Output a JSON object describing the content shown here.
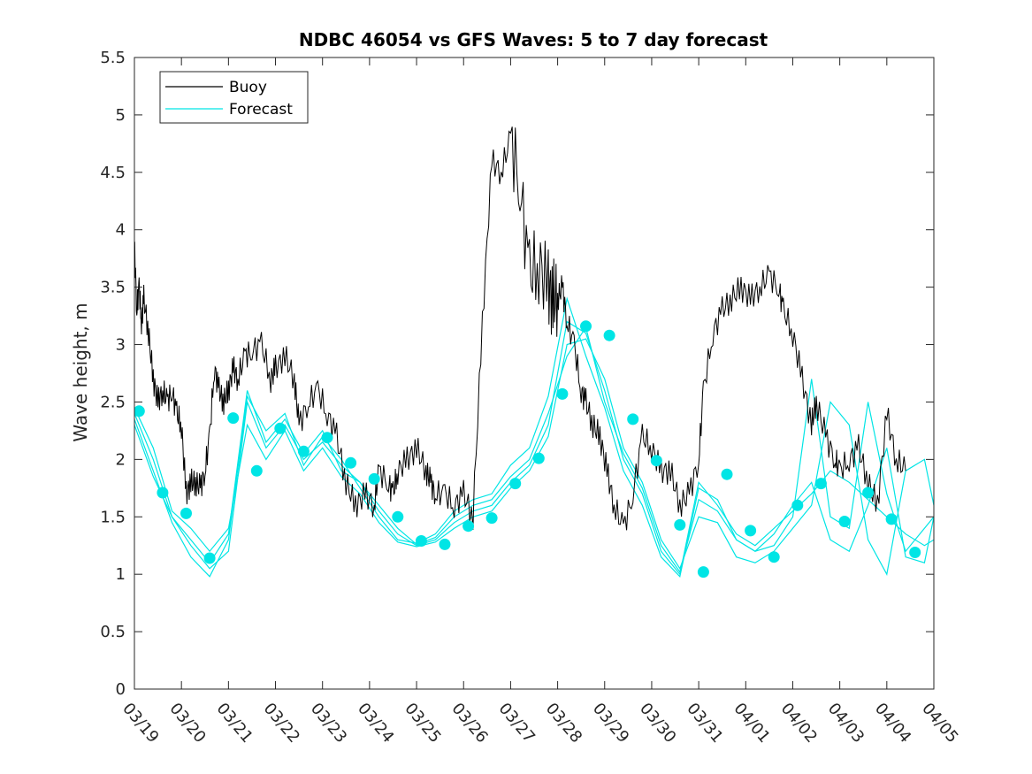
{
  "chart_data": {
    "type": "line",
    "title": "NDBC 46054 vs GFS Waves: 5 to 7 day forecast",
    "xlabel": "",
    "ylabel": "Wave height, m",
    "xlim": [
      0,
      17
    ],
    "ylim": [
      0,
      5.5
    ],
    "yticks": [
      0,
      0.5,
      1,
      1.5,
      2,
      2.5,
      3,
      3.5,
      4,
      4.5,
      5,
      5.5
    ],
    "ytick_labels": [
      "0",
      "0.5",
      "1",
      "1.5",
      "2",
      "2.5",
      "3",
      "3.5",
      "4",
      "4.5",
      "5",
      "5.5"
    ],
    "xtick_labels": [
      "03/19",
      "03/20",
      "03/21",
      "03/22",
      "03/23",
      "03/24",
      "03/25",
      "03/26",
      "03/27",
      "03/28",
      "03/29",
      "03/30",
      "03/31",
      "04/01",
      "04/02",
      "04/03",
      "04/04",
      "04/05"
    ],
    "grid": false,
    "legend_position": "top-left",
    "colors": {
      "buoy": "#000000",
      "forecast": "#00e5e5",
      "axis": "#262626"
    },
    "buoy": {
      "name": "Buoy",
      "x": [
        0.0,
        0.05,
        0.1,
        0.15,
        0.2,
        0.3,
        0.4,
        0.5,
        0.6,
        0.7,
        0.8,
        0.9,
        1.0,
        1.1,
        1.2,
        1.3,
        1.4,
        1.5,
        1.6,
        1.7,
        1.8,
        1.9,
        2.0,
        2.1,
        2.2,
        2.35,
        2.5,
        2.7,
        2.9,
        3.0,
        3.2,
        3.4,
        3.5,
        3.7,
        3.9,
        4.1,
        4.3,
        4.5,
        4.7,
        4.9,
        5.1,
        5.2,
        5.4,
        5.5,
        5.6,
        5.8,
        6.0,
        6.2,
        6.3,
        6.4,
        6.6,
        6.8,
        7.0,
        7.2,
        7.4,
        7.6,
        7.8,
        8.0,
        8.2,
        8.4,
        8.6,
        8.8,
        8.9,
        9.0,
        9.1,
        9.2,
        9.35,
        9.5,
        9.6,
        9.75,
        9.9,
        10.05,
        10.2,
        10.4,
        10.6,
        10.8,
        11.0,
        11.2,
        11.4,
        11.6,
        11.8,
        12.0,
        12.1,
        12.3,
        12.5,
        12.7,
        12.9,
        13.1,
        13.3,
        13.5,
        13.7,
        13.8,
        14.0,
        14.2,
        14.4,
        14.5,
        14.7,
        14.9,
        15.0,
        15.2,
        15.4,
        15.6,
        15.8,
        16.0,
        16.2,
        16.4
      ],
      "values": [
        3.9,
        3.3,
        3.5,
        3.2,
        3.4,
        3.1,
        2.7,
        2.5,
        2.6,
        2.5,
        2.6,
        2.4,
        2.3,
        1.7,
        1.8,
        1.8,
        1.75,
        1.9,
        2.2,
        2.8,
        2.6,
        2.5,
        2.6,
        2.8,
        2.7,
        2.9,
        2.95,
        3.0,
        2.7,
        2.8,
        2.9,
        2.7,
        2.3,
        2.5,
        2.6,
        2.4,
        2.2,
        1.8,
        1.6,
        1.7,
        1.6,
        1.9,
        1.8,
        1.7,
        1.9,
        2.0,
        2.1,
        1.9,
        1.8,
        1.7,
        1.7,
        1.6,
        1.7,
        1.5,
        3.2,
        4.6,
        4.5,
        4.8,
        4.4,
        3.6,
        3.7,
        3.5,
        3.4,
        3.4,
        3.5,
        3.2,
        3.0,
        2.6,
        2.5,
        2.3,
        2.2,
        1.9,
        1.6,
        1.4,
        1.7,
        2.2,
        2.1,
        1.9,
        1.9,
        1.6,
        1.7,
        2.0,
        2.6,
        3.1,
        3.3,
        3.4,
        3.5,
        3.4,
        3.5,
        3.6,
        3.5,
        3.3,
        3.1,
        2.7,
        2.3,
        2.5,
        2.2,
        2.0,
        1.9,
        2.0,
        2.1,
        1.8,
        1.6,
        2.4,
        2.0,
        1.9
      ],
      "forecast_x": [
        0.05,
        0.6,
        1.1,
        1.6,
        2.1,
        2.6,
        3.1,
        3.6,
        4.1,
        4.6,
        5.1,
        5.6,
        6.1,
        6.6,
        7.1,
        7.6,
        8.1,
        8.6,
        9.1,
        9.6,
        10.1,
        10.6,
        11.1,
        11.6,
        12.1,
        12.6,
        13.1,
        13.6,
        14.1,
        14.6,
        15.1,
        15.6,
        16.1,
        16.6,
        17.0
      ]
    },
    "series": [
      {
        "name": "Forecast",
        "x": [
          0.0,
          0.4,
          0.8,
          1.2,
          1.6,
          2.0,
          2.4,
          2.8,
          3.2,
          3.6,
          4.0,
          4.4,
          4.8,
          5.2,
          5.6,
          6.0,
          6.4,
          6.8,
          7.2,
          7.6,
          8.0,
          8.4,
          8.8,
          9.2,
          9.6,
          10.0,
          10.4,
          10.8,
          11.2,
          11.6,
          12.0,
          12.4,
          12.8,
          13.2,
          13.6,
          14.0,
          14.4,
          14.8,
          15.2,
          15.6,
          16.0,
          16.4,
          16.8,
          17.0
        ],
        "values": [
          2.4,
          2.0,
          1.5,
          1.25,
          1.05,
          1.2,
          2.5,
          2.1,
          2.3,
          2.0,
          2.15,
          1.95,
          1.8,
          1.55,
          1.35,
          1.25,
          1.3,
          1.45,
          1.55,
          1.6,
          1.8,
          1.95,
          2.3,
          3.2,
          3.1,
          2.6,
          2.0,
          1.7,
          1.2,
          1.0,
          1.8,
          1.6,
          1.35,
          1.25,
          1.4,
          1.55,
          1.7,
          1.9,
          1.8,
          1.65,
          1.5,
          1.35,
          1.25,
          1.3
        ]
      },
      {
        "name": "",
        "x": [
          0.0,
          0.4,
          0.8,
          1.2,
          1.6,
          2.0,
          2.4,
          2.8,
          3.2,
          3.6,
          4.0,
          4.4,
          4.8,
          5.2,
          5.6,
          6.0,
          6.4,
          6.8,
          7.2,
          7.6,
          8.0,
          8.4,
          8.8,
          9.2,
          9.6,
          10.0,
          10.4,
          10.8,
          11.2,
          11.6,
          12.0,
          12.4,
          12.8,
          13.2,
          13.6,
          14.0,
          14.4,
          14.8,
          15.2,
          15.6,
          16.0,
          16.4,
          16.8,
          17.0
        ],
        "values": [
          2.35,
          1.9,
          1.45,
          1.15,
          0.98,
          1.3,
          2.55,
          2.25,
          2.4,
          1.95,
          2.2,
          2.0,
          1.75,
          1.5,
          1.3,
          1.27,
          1.35,
          1.55,
          1.65,
          1.7,
          1.95,
          2.1,
          2.55,
          3.4,
          2.9,
          2.45,
          1.9,
          1.6,
          1.15,
          0.98,
          1.75,
          1.65,
          1.3,
          1.2,
          1.35,
          1.6,
          1.8,
          1.3,
          1.2,
          1.6,
          2.1,
          1.15,
          1.1,
          1.5
        ]
      },
      {
        "name": "",
        "x": [
          0.0,
          0.4,
          0.8,
          1.2,
          1.6,
          2.0,
          2.4,
          2.8,
          3.2,
          3.6,
          4.0,
          4.4,
          4.8,
          5.2,
          5.6,
          6.0,
          6.4,
          6.8,
          7.2,
          7.6,
          8.0,
          8.4,
          8.8,
          9.2,
          9.6,
          10.0,
          10.4,
          10.8,
          11.2,
          11.6,
          12.0,
          12.4,
          12.8,
          13.2,
          13.6,
          14.0,
          14.4,
          14.8,
          15.2,
          15.6,
          16.0,
          16.4,
          16.8,
          17.0
        ],
        "values": [
          2.45,
          2.1,
          1.55,
          1.4,
          1.2,
          1.4,
          2.3,
          2.0,
          2.25,
          1.9,
          2.1,
          1.85,
          1.7,
          1.45,
          1.28,
          1.24,
          1.28,
          1.4,
          1.5,
          1.55,
          1.75,
          1.9,
          2.2,
          3.0,
          3.05,
          2.7,
          2.1,
          1.8,
          1.3,
          1.05,
          1.5,
          1.45,
          1.15,
          1.1,
          1.2,
          1.4,
          1.6,
          2.5,
          2.3,
          1.3,
          1.0,
          1.9,
          2.0,
          1.6
        ]
      },
      {
        "name": "",
        "x": [
          0.0,
          0.4,
          0.8,
          1.2,
          1.6,
          2.0,
          2.4,
          2.8,
          3.2,
          3.6,
          4.0,
          4.4,
          4.8,
          5.2,
          5.6,
          6.0,
          6.4,
          6.8,
          7.2,
          7.6,
          8.0,
          8.4,
          8.8,
          9.2,
          9.6,
          10.0,
          10.4,
          10.8,
          11.2,
          11.6,
          12.0,
          12.4,
          12.8,
          13.2,
          13.6,
          14.0,
          14.4,
          14.8,
          15.2,
          15.6,
          16.0,
          16.4,
          16.8,
          17.0
        ],
        "values": [
          2.3,
          1.85,
          1.5,
          1.3,
          1.1,
          1.35,
          2.6,
          2.15,
          2.35,
          2.05,
          2.25,
          1.9,
          1.8,
          1.6,
          1.4,
          1.26,
          1.32,
          1.5,
          1.6,
          1.65,
          1.85,
          2.0,
          2.4,
          2.9,
          3.15,
          2.5,
          2.05,
          1.75,
          1.25,
          1.02,
          1.65,
          1.55,
          1.3,
          1.2,
          1.25,
          1.5,
          2.7,
          1.5,
          1.4,
          2.5,
          1.7,
          1.2,
          1.4,
          1.5
        ]
      }
    ],
    "forecast_markers": {
      "x": [
        0.1,
        0.6,
        1.1,
        1.6,
        2.1,
        2.6,
        3.1,
        3.6,
        4.1,
        4.6,
        5.1,
        5.6,
        6.1,
        6.6,
        7.1,
        7.6,
        8.1,
        8.6,
        9.1,
        9.6,
        10.1,
        10.6,
        11.1,
        11.6,
        12.1,
        12.6,
        13.1,
        13.6,
        14.1,
        14.6,
        15.1,
        15.6,
        16.1,
        16.6
      ],
      "values": [
        2.42,
        1.71,
        1.53,
        1.14,
        2.36,
        1.9,
        2.27,
        2.07,
        2.19,
        1.97,
        1.83,
        1.5,
        1.29,
        1.26,
        1.42,
        1.49,
        1.79,
        2.01,
        2.57,
        3.16,
        3.08,
        2.35,
        1.99,
        1.43,
        1.02,
        1.87,
        1.38,
        1.15,
        1.6,
        1.79,
        1.46,
        1.71,
        1.48,
        1.19
      ]
    }
  },
  "legend": {
    "items": [
      {
        "label": "Buoy",
        "color": "#000000"
      },
      {
        "label": "Forecast",
        "color": "#00e5e5"
      }
    ]
  }
}
